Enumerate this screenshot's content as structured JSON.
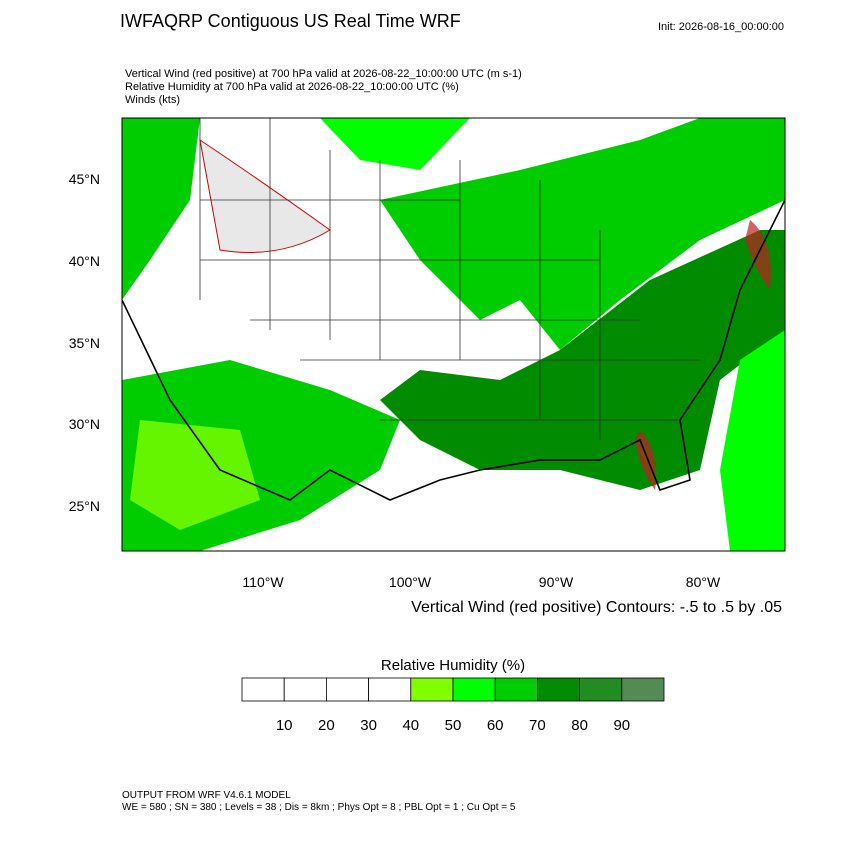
{
  "header": {
    "title": "IWFAQRP Contiguous US Real Time WRF",
    "init": "Init: 2026-08-16_00:00:00",
    "subtitle_lines": [
      "Vertical Wind (red positive) at 700 hPa valid at 2026-08-22_10:00:00 UTC   (m s-1)",
      "Relative Humidity at 700 hPa valid at 2026-08-22_10:00:00 UTC   (%)",
      "Winds   (kts)"
    ]
  },
  "map": {
    "lat_labels": [
      "45°N",
      "40°N",
      "35°N",
      "30°N",
      "25°N"
    ],
    "lon_labels": [
      "110°W",
      "100°W",
      "90°W",
      "80°W"
    ],
    "contour_note": "Vertical Wind (red positive) Contours: -.5 to .5 by .05"
  },
  "colorbar": {
    "title": "Relative Humidity  (%)",
    "labels": [
      "10",
      "20",
      "30",
      "40",
      "50",
      "60",
      "70",
      "80",
      "90"
    ],
    "colors": [
      "#ffffff",
      "#ffffff",
      "#ffffff",
      "#ffffff",
      "#80ff00",
      "#00ff00",
      "#00cd00",
      "#008b00",
      "#228b22",
      "#548b54"
    ]
  },
  "footer": {
    "lines": [
      "OUTPUT FROM WRF V4.6.1 MODEL",
      "WE = 580 ; SN = 380 ; Levels = 38 ; Dis = 8km ; Phys Opt = 8 ; PBL Opt = 1 ; Cu Opt = 5"
    ]
  }
}
